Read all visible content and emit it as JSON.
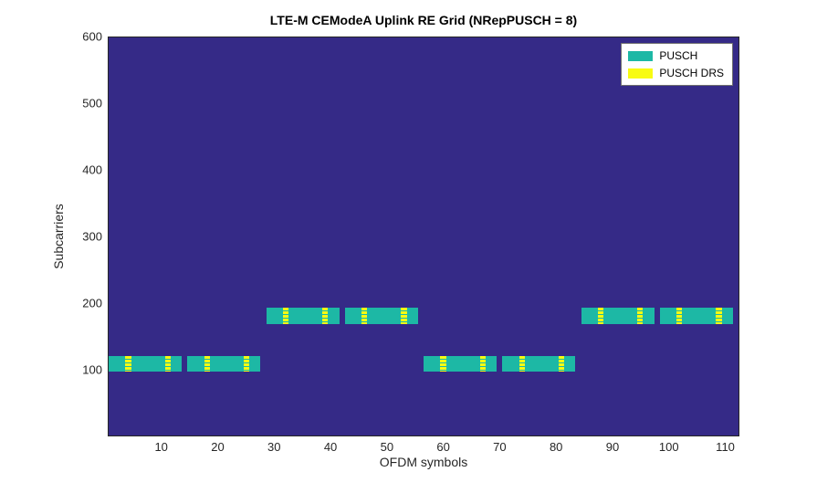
{
  "chart_data": {
    "type": "heatmap",
    "title": "LTE-M CEModeA Uplink RE Grid (NRepPUSCH = 8)",
    "xlabel": "OFDM symbols",
    "ylabel": "Subcarriers",
    "xlim": [
      0.5,
      112.5
    ],
    "ylim": [
      0,
      600
    ],
    "xticks": [
      10,
      20,
      30,
      40,
      50,
      60,
      70,
      80,
      90,
      100,
      110
    ],
    "yticks": [
      100,
      200,
      300,
      400,
      500,
      600
    ],
    "grid": false,
    "legend_position": "top-right",
    "colors": {
      "background": "#352a87",
      "pusch": "#1db8a5",
      "pusch_drs": "#f8fb12",
      "axis_text": "#262626"
    },
    "legend": [
      {
        "label": "PUSCH",
        "color": "#1db8a5"
      },
      {
        "label": "PUSCH DRS",
        "color": "#f8fb12"
      }
    ],
    "subframe_length_symbols": 14,
    "bands": [
      {
        "symbols": [
          1,
          13
        ],
        "subcarriers": [
          97,
          120
        ],
        "drs_symbols": [
          4,
          11
        ]
      },
      {
        "symbols": [
          15,
          27
        ],
        "subcarriers": [
          97,
          120
        ],
        "drs_symbols": [
          18,
          25
        ]
      },
      {
        "symbols": [
          29,
          41
        ],
        "subcarriers": [
          169,
          192
        ],
        "drs_symbols": [
          32,
          39
        ]
      },
      {
        "symbols": [
          43,
          55
        ],
        "subcarriers": [
          169,
          192
        ],
        "drs_symbols": [
          46,
          53
        ]
      },
      {
        "symbols": [
          57,
          69
        ],
        "subcarriers": [
          97,
          120
        ],
        "drs_symbols": [
          60,
          67
        ]
      },
      {
        "symbols": [
          71,
          83
        ],
        "subcarriers": [
          97,
          120
        ],
        "drs_symbols": [
          74,
          81
        ]
      },
      {
        "symbols": [
          85,
          97
        ],
        "subcarriers": [
          169,
          192
        ],
        "drs_symbols": [
          88,
          95
        ]
      },
      {
        "symbols": [
          99,
          111
        ],
        "subcarriers": [
          169,
          192
        ],
        "drs_symbols": [
          102,
          109
        ]
      }
    ]
  }
}
